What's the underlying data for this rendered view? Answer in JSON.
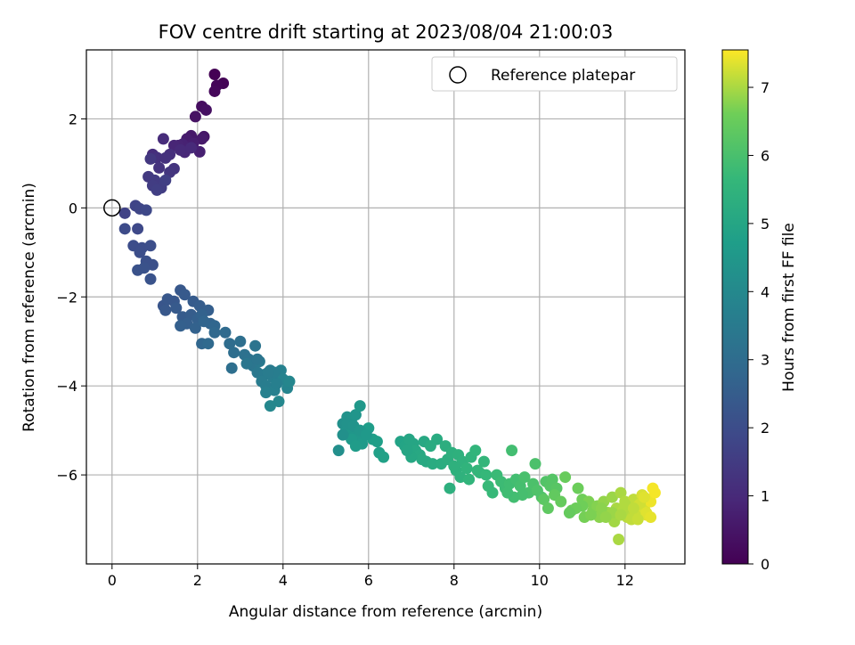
{
  "chart_data": {
    "type": "scatter",
    "title": "FOV centre drift starting at 2023/08/04 21:00:03",
    "xlabel": "Angular distance from reference (arcmin)",
    "ylabel": "Rotation from reference (arcmin)",
    "xlim": [
      -0.6,
      13.4
    ],
    "ylim": [
      -8.0,
      3.55
    ],
    "xticks": [
      0,
      2,
      4,
      6,
      8,
      10,
      12
    ],
    "yticks": [
      -6,
      -4,
      -2,
      0,
      2
    ],
    "grid": true,
    "legend": {
      "position": "top-right",
      "entries": [
        "Reference platepar"
      ]
    },
    "reference_point": {
      "x": 0,
      "y": 0
    },
    "colorbar": {
      "label": "Hours from first FF file",
      "colormap": "viridis",
      "range": [
        0,
        7.55
      ],
      "ticks": [
        0,
        1,
        2,
        3,
        4,
        5,
        6,
        7
      ]
    },
    "series": [
      {
        "x": [
          2.4,
          2.6,
          2.45,
          2.4,
          2.1,
          2.2,
          1.95,
          2.15,
          1.85,
          2.1,
          1.75,
          1.9,
          2.05,
          1.65,
          1.55,
          1.45,
          1.7,
          1.6,
          1.85,
          1.2,
          0.95,
          1.35,
          1.05,
          1.25,
          1.1,
          1.45,
          1.35,
          0.9,
          0.85,
          1.0,
          0.95,
          1.15,
          1.05,
          1.25
        ],
        "y": [
          3.0,
          2.8,
          2.75,
          2.62,
          2.28,
          2.2,
          2.05,
          1.6,
          1.62,
          1.55,
          1.55,
          1.45,
          1.26,
          1.43,
          1.4,
          1.4,
          1.25,
          1.3,
          1.35,
          1.55,
          1.2,
          1.2,
          1.13,
          1.12,
          0.9,
          0.88,
          0.8,
          1.1,
          0.7,
          0.62,
          0.5,
          0.45,
          0.4,
          0.62
        ],
        "t": [
          0.0,
          0.05,
          0.1,
          0.15,
          0.3,
          0.35,
          0.4,
          0.5,
          0.55,
          0.6,
          0.65,
          0.7,
          0.75,
          0.8,
          0.85,
          0.9,
          0.95,
          1.0,
          1.0,
          1.05,
          1.1,
          1.15,
          1.2,
          1.2,
          1.25,
          1.3,
          1.35,
          1.4,
          1.45,
          1.5,
          1.55,
          1.55,
          1.6,
          1.6
        ]
      },
      {
        "x": [
          0.3,
          0.55,
          0.65,
          0.8,
          0.6,
          0.3,
          0.5,
          0.7,
          0.9,
          0.65,
          0.8,
          0.95,
          0.6,
          0.75,
          0.9,
          1.2,
          1.3,
          1.45,
          1.6,
          1.25,
          1.5,
          1.7,
          1.65,
          1.9,
          1.85,
          2.05,
          1.75,
          2.25,
          2.0,
          1.6,
          2.1,
          1.95,
          2.3,
          2.15,
          2.4,
          2.1,
          2.4,
          2.25
        ],
        "y": [
          -0.12,
          0.05,
          -0.02,
          -0.05,
          -0.47,
          -0.47,
          -0.85,
          -0.9,
          -0.85,
          -1.0,
          -1.2,
          -1.28,
          -1.4,
          -1.35,
          -1.6,
          -2.2,
          -2.05,
          -2.1,
          -1.85,
          -2.3,
          -2.25,
          -1.95,
          -2.45,
          -2.1,
          -2.4,
          -2.2,
          -2.6,
          -2.3,
          -2.5,
          -2.65,
          -2.4,
          -2.7,
          -2.6,
          -2.55,
          -2.65,
          -3.05,
          -2.8,
          -3.05
        ],
        "t": [
          1.7,
          1.75,
          1.8,
          1.85,
          1.9,
          1.95,
          2.0,
          2.0,
          2.05,
          2.05,
          2.1,
          2.1,
          2.15,
          2.15,
          2.2,
          2.25,
          2.3,
          2.3,
          2.35,
          2.35,
          2.4,
          2.4,
          2.45,
          2.45,
          2.5,
          2.5,
          2.55,
          2.55,
          2.6,
          2.6,
          2.65,
          2.65,
          2.7,
          2.75,
          2.8,
          2.8,
          2.85,
          2.9
        ]
      },
      {
        "x": [
          2.65,
          2.75,
          2.85,
          2.8,
          3.0,
          3.1,
          3.2,
          3.35,
          3.3,
          3.15,
          3.4,
          3.45,
          3.55,
          3.7,
          3.5,
          3.6,
          3.75,
          3.85,
          3.8,
          3.95,
          4.0,
          4.1,
          4.15,
          3.9,
          3.7,
          3.6,
          3.8,
          3.85,
          3.65,
          3.4
        ],
        "y": [
          -2.8,
          -3.05,
          -3.25,
          -3.6,
          -3.0,
          -3.3,
          -3.4,
          -3.1,
          -3.55,
          -3.5,
          -3.7,
          -3.45,
          -3.75,
          -3.65,
          -3.9,
          -4.0,
          -3.8,
          -3.95,
          -4.1,
          -3.65,
          -3.85,
          -4.05,
          -3.9,
          -4.35,
          -4.45,
          -4.15,
          -3.7,
          -3.95,
          -3.7,
          -3.4
        ],
        "t": [
          2.95,
          3.0,
          3.05,
          3.1,
          3.1,
          3.15,
          3.2,
          3.25,
          3.3,
          3.35,
          3.4,
          3.45,
          3.5,
          3.5,
          3.55,
          3.6,
          3.6,
          3.65,
          3.7,
          3.75,
          3.8,
          3.85,
          3.9,
          3.95,
          3.95,
          3.7,
          3.6,
          3.65,
          3.55,
          3.3
        ]
      },
      {
        "x": [
          5.3,
          5.4,
          5.5,
          5.6,
          5.7,
          5.45,
          5.55,
          5.65,
          5.8,
          5.75,
          5.9,
          5.85,
          5.6,
          5.7,
          6.0,
          6.1,
          6.2,
          6.25,
          6.35,
          5.5,
          5.65,
          5.4,
          5.8,
          5.95
        ],
        "y": [
          -5.45,
          -4.85,
          -4.7,
          -4.75,
          -4.65,
          -5.05,
          -4.95,
          -5.15,
          -4.45,
          -5.2,
          -5.05,
          -5.3,
          -5.2,
          -5.35,
          -4.95,
          -5.2,
          -5.25,
          -5.5,
          -5.6,
          -4.85,
          -4.9,
          -5.1,
          -5.0,
          -5.1
        ],
        "t": [
          4.2,
          4.25,
          4.3,
          4.35,
          4.4,
          4.4,
          4.45,
          4.45,
          4.5,
          4.5,
          4.55,
          4.6,
          4.6,
          4.65,
          4.7,
          4.75,
          4.75,
          4.8,
          4.85,
          4.3,
          4.35,
          4.25,
          4.45,
          4.55
        ]
      },
      {
        "x": [
          6.75,
          6.85,
          6.95,
          7.05,
          7.1,
          7.2,
          7.3,
          7.35,
          7.5,
          7.6,
          7.7,
          7.8,
          7.85,
          7.95,
          8.05,
          8.1,
          8.2,
          8.3,
          8.4,
          8.5,
          8.6,
          8.7,
          7.25,
          7.0,
          6.9,
          7.45,
          7.9,
          8.0,
          8.15,
          8.35,
          8.55,
          8.75,
          8.8,
          8.9,
          9.0,
          9.1,
          9.2,
          9.3,
          9.35,
          9.45,
          9.55,
          9.65,
          9.75,
          9.85,
          9.95,
          10.05,
          10.15,
          10.25,
          10.3,
          10.4,
          9.9,
          9.6,
          9.4,
          9.25
        ],
        "y": [
          -5.25,
          -5.35,
          -5.2,
          -5.3,
          -5.45,
          -5.55,
          -5.25,
          -5.7,
          -5.75,
          -5.2,
          -5.75,
          -5.35,
          -5.65,
          -5.5,
          -5.9,
          -5.55,
          -5.7,
          -5.85,
          -5.6,
          -5.45,
          -5.95,
          -5.7,
          -5.65,
          -5.6,
          -5.45,
          -5.35,
          -6.3,
          -5.8,
          -6.05,
          -6.1,
          -5.9,
          -6.0,
          -6.25,
          -6.4,
          -6.0,
          -6.15,
          -6.3,
          -6.2,
          -5.45,
          -6.1,
          -6.25,
          -6.05,
          -6.4,
          -6.2,
          -6.35,
          -6.5,
          -6.15,
          -6.25,
          -6.1,
          -6.3,
          -5.75,
          -6.45,
          -6.5,
          -6.4
        ],
        "t": [
          4.9,
          4.95,
          5.0,
          5.0,
          5.05,
          5.1,
          5.1,
          5.15,
          5.2,
          5.2,
          5.25,
          5.3,
          5.3,
          5.35,
          5.4,
          5.4,
          5.45,
          5.5,
          5.5,
          5.55,
          5.6,
          5.6,
          5.15,
          5.05,
          5.0,
          5.2,
          5.35,
          5.4,
          5.45,
          5.55,
          5.6,
          5.65,
          5.7,
          5.7,
          5.75,
          5.8,
          5.8,
          5.85,
          5.9,
          5.9,
          5.95,
          6.0,
          6.0,
          6.05,
          6.1,
          6.1,
          6.15,
          6.2,
          6.2,
          6.25,
          6.05,
          5.95,
          5.9,
          5.85
        ]
      },
      {
        "x": [
          10.1,
          10.2,
          10.35,
          10.5,
          10.6,
          10.75,
          10.9,
          11.0,
          11.05,
          11.15,
          11.25,
          11.35,
          11.4,
          11.5,
          11.6,
          11.7,
          11.75,
          11.8,
          11.9,
          12.0,
          12.05,
          12.1,
          12.2,
          12.25,
          12.3,
          12.4,
          12.45,
          12.5,
          12.55,
          12.6,
          12.65,
          12.7,
          11.85,
          11.95,
          12.15,
          12.35,
          12.5,
          12.6,
          12.3,
          12.0,
          11.7,
          11.45,
          11.2,
          11.0,
          10.85,
          10.7,
          11.55,
          11.9,
          12.2,
          12.45
        ],
        "y": [
          -6.55,
          -6.75,
          -6.45,
          -6.6,
          -6.05,
          -6.8,
          -6.3,
          -6.55,
          -6.95,
          -6.6,
          -6.8,
          -6.7,
          -6.95,
          -6.6,
          -6.85,
          -6.5,
          -7.05,
          -6.75,
          -6.4,
          -6.6,
          -6.95,
          -6.8,
          -6.55,
          -6.85,
          -6.7,
          -6.45,
          -6.75,
          -6.9,
          -6.55,
          -6.6,
          -6.3,
          -6.4,
          -7.45,
          -6.8,
          -7.0,
          -6.65,
          -6.85,
          -6.95,
          -7.0,
          -6.65,
          -6.85,
          -6.75,
          -6.9,
          -6.7,
          -6.75,
          -6.85,
          -6.95,
          -6.9,
          -6.75,
          -6.5
        ],
        "t": [
          6.3,
          6.35,
          6.4,
          6.45,
          6.5,
          6.5,
          6.55,
          6.6,
          6.65,
          6.7,
          6.7,
          6.75,
          6.8,
          6.85,
          6.9,
          6.9,
          6.95,
          7.0,
          7.0,
          7.05,
          7.1,
          7.1,
          7.15,
          7.2,
          7.25,
          7.3,
          7.3,
          7.35,
          7.4,
          7.45,
          7.5,
          7.5,
          7.0,
          7.05,
          7.15,
          7.25,
          7.35,
          7.4,
          7.2,
          7.05,
          6.9,
          6.8,
          6.7,
          6.6,
          6.55,
          6.45,
          6.85,
          7.0,
          7.15,
          7.35
        ]
      }
    ]
  }
}
